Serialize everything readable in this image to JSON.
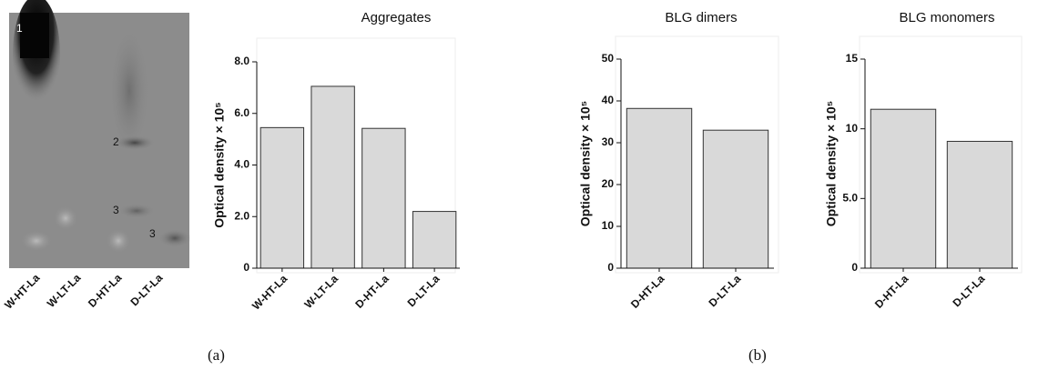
{
  "gel": {
    "band_labels": [
      "1",
      "2",
      "3",
      "3"
    ],
    "lanes": [
      "W-HT-La",
      "W-LT-La",
      "D-HT-La",
      "D-LT-La"
    ]
  },
  "panel_labels": [
    "(a)",
    "(b)"
  ],
  "chart_data": [
    {
      "type": "bar",
      "title": "Aggregates",
      "y_label": "Optical density × 10⁵",
      "categories": [
        "W-HT-La",
        "W-LT-La",
        "D-HT-La",
        "D-LT-La"
      ],
      "values": [
        5.45,
        7.05,
        5.42,
        2.2
      ],
      "color": "#d9d9d9",
      "ylim": [
        0,
        8
      ],
      "yticks": [
        0,
        {
          "value": 2,
          "label": "2.0"
        },
        {
          "value": 4,
          "label": "4.0"
        },
        {
          "value": 6,
          "label": "6.0"
        },
        {
          "value": 8,
          "label": "8.0"
        }
      ]
    },
    {
      "type": "bar",
      "title": "BLG dimers",
      "y_label": "Optical density × 10⁵",
      "categories": [
        "D-HT-La",
        "D-LT-La"
      ],
      "values": [
        38.2,
        33.0
      ],
      "color": "#d9d9d9",
      "ylim": [
        0,
        50
      ],
      "yticks": [
        0,
        10,
        20,
        30,
        40,
        50
      ]
    },
    {
      "type": "bar",
      "title": "BLG monomers",
      "y_label": "Optical density × 10⁵",
      "categories": [
        "D-HT-La",
        "D-LT-La"
      ],
      "values": [
        11.4,
        9.1
      ],
      "color": "#d9d9d9",
      "ylim": [
        0,
        15
      ],
      "yticks": [
        0,
        {
          "value": 5,
          "label": "5.0"
        },
        10,
        15
      ]
    }
  ]
}
